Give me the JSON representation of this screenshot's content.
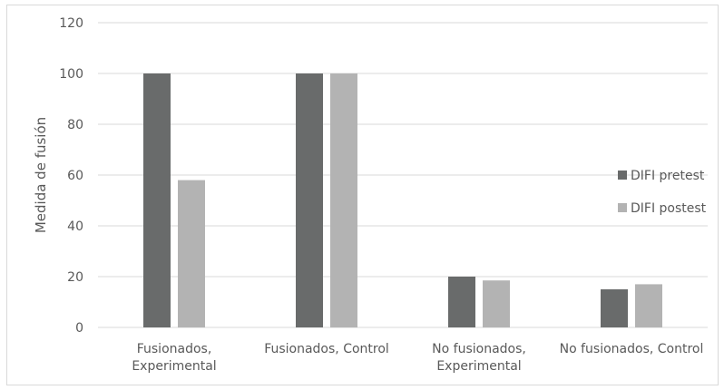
{
  "chart_data": {
    "type": "bar",
    "title": "",
    "xlabel": "",
    "ylabel": "Medida de fusión",
    "ylim": [
      0,
      120
    ],
    "yticks": [
      0,
      20,
      40,
      60,
      80,
      100,
      120
    ],
    "grid": true,
    "legend_position": "right",
    "categories": [
      [
        "Fusionados,",
        "Experimental"
      ],
      [
        "Fusionados, Control"
      ],
      [
        "No fusionados,",
        "Experimental"
      ],
      [
        "No fusionados, Control"
      ]
    ],
    "series": [
      {
        "name": "DIFI pretest",
        "color": "#696b6b",
        "values": [
          100,
          100,
          20,
          15
        ]
      },
      {
        "name": "DIFI postest",
        "color": "#b3b3b3",
        "values": [
          58,
          100,
          18.5,
          17
        ]
      }
    ]
  }
}
